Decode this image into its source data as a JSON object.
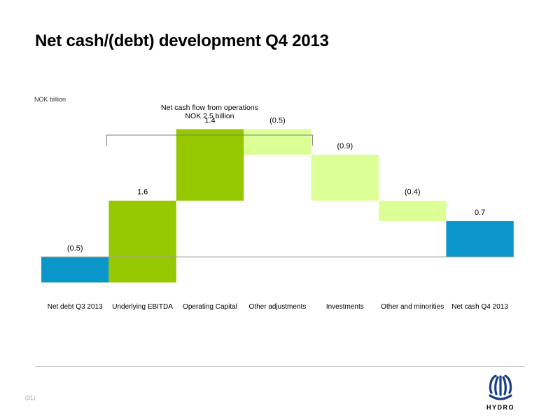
{
  "header": {
    "title": "Net cash/(debt) development Q4 2013"
  },
  "chart_data": {
    "type": "bar",
    "subtype": "waterfall",
    "unit_label": "NOK billion",
    "categories": [
      "Net debt Q3 2013",
      "Underlying EBITDA",
      "Operating Capital",
      "Other adjustments",
      "Investments",
      "Other and minorities",
      "Net cash Q4 2013"
    ],
    "values": [
      -0.5,
      1.6,
      1.4,
      -0.5,
      -0.9,
      -0.4,
      0.7
    ],
    "value_labels": [
      "(0.5)",
      "1.6",
      "1.4",
      "(0.5)",
      "(0.9)",
      "(0.4)",
      "0.7"
    ],
    "bar_kinds": [
      "total",
      "delta",
      "delta",
      "delta",
      "delta",
      "delta",
      "total"
    ],
    "colors": {
      "total": "#0a96c8",
      "positive": "#96c800",
      "negative": "#dcff96",
      "baseline": "#a0a0a0",
      "bracket": "#7f7f7f"
    },
    "annotation": {
      "line1": "Net cash flow from operations",
      "line2": "NOK 2.5 billion",
      "spans": [
        "Underlying EBITDA",
        "Operating Capital",
        "Other adjustments"
      ]
    },
    "ylim": [
      -0.6,
      2.6
    ],
    "grid": false,
    "legend": "none"
  },
  "footer": {
    "page_number": "(31)",
    "logo_text": "HYDRO",
    "logo_color": "#1a3c8c"
  }
}
